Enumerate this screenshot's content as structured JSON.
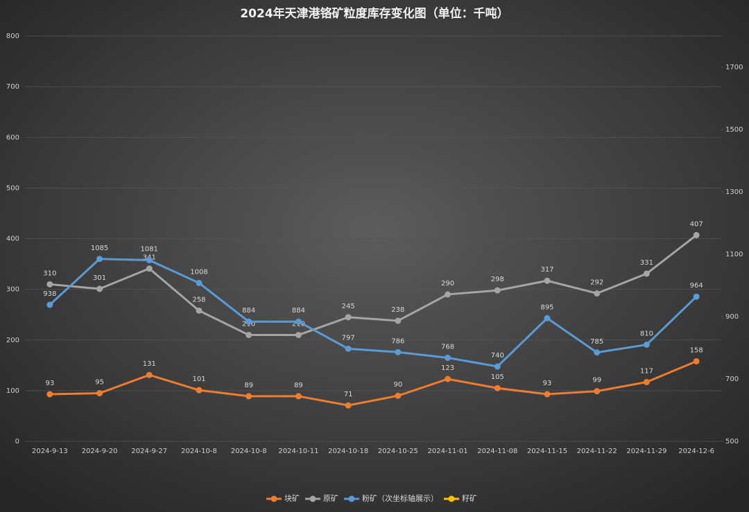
{
  "chart_data": {
    "type": "line",
    "title": "2024年天津港铬矿粒度库存变化图（单位：千吨）",
    "categories": [
      "2024-9-13",
      "2024-9-20",
      "2024-9-27",
      "2024-10-8",
      "2024-10-8",
      "2024-10-11",
      "2024-10-18",
      "2024-10-25",
      "2024-11-01",
      "2024-11-08",
      "2024-11-15",
      "2024-11-22",
      "2024-11-29",
      "2024-12-6"
    ],
    "series": [
      {
        "name": "块矿",
        "color": "#ed7d31",
        "values": [
          93,
          95,
          131,
          101,
          89,
          89,
          71,
          90,
          123,
          105,
          93,
          99,
          117,
          158
        ]
      },
      {
        "name": "原矿",
        "color": "#a5a5a5",
        "values": [
          310,
          301,
          341,
          258,
          210,
          210,
          245,
          238,
          290,
          298,
          317,
          292,
          331,
          407
        ]
      },
      {
        "name": "粉矿（次坐标轴展示）",
        "color": "#5b9bd5",
        "axis": "y2",
        "values": [
          938,
          1085,
          1081,
          1008,
          884,
          884,
          797,
          786,
          768,
          740,
          895,
          785,
          810,
          964
        ]
      },
      {
        "name": "籽矿",
        "color": "#ffc000",
        "values": [
          null,
          null,
          null,
          null,
          null,
          null,
          null,
          null,
          null,
          null,
          null,
          null,
          null,
          null
        ]
      }
    ],
    "ylim": [
      0,
      800
    ],
    "yticks": [
      0,
      100,
      200,
      300,
      400,
      500,
      600,
      700,
      800
    ],
    "y2lim": [
      500,
      1800
    ],
    "y2ticks": [
      500,
      700,
      900,
      1100,
      1300,
      1500,
      1700
    ],
    "grid": true,
    "legend": "bottom"
  }
}
